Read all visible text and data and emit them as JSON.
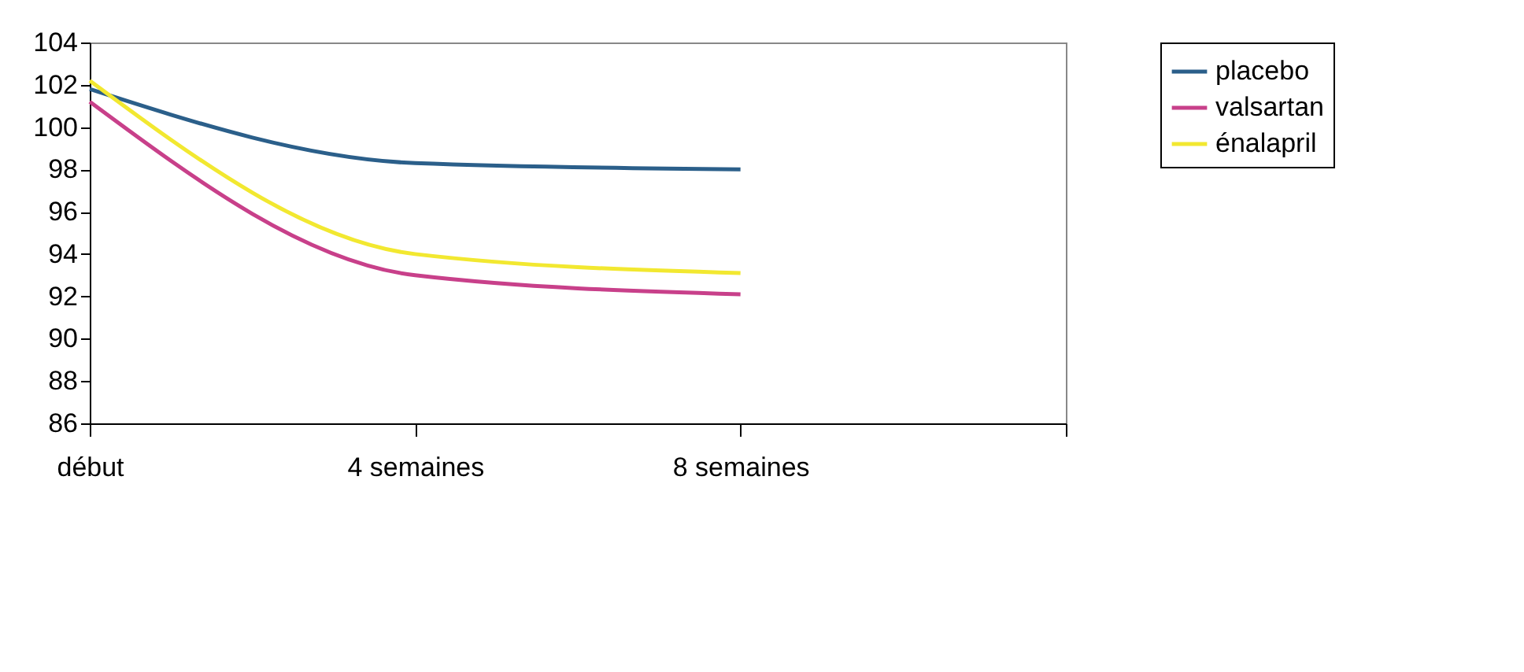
{
  "chart_data": {
    "type": "line",
    "categories": [
      "début",
      "4 semaines",
      "8 semaines",
      null
    ],
    "series": [
      {
        "name": "placebo",
        "color": "#2b5f8a",
        "values": [
          101.8,
          98.3,
          98.0,
          null
        ]
      },
      {
        "name": "valsartan",
        "color": "#c8408a",
        "values": [
          101.2,
          93.0,
          92.1,
          null
        ]
      },
      {
        "name": "énalapril",
        "color": "#f2e830",
        "values": [
          102.2,
          94.0,
          93.1,
          null
        ]
      }
    ],
    "ylim": [
      86,
      104
    ],
    "yticks": [
      86,
      88,
      90,
      92,
      94,
      96,
      98,
      100,
      102,
      104
    ],
    "grid": false,
    "legend": "right",
    "marker": "none",
    "line_style": "solid"
  }
}
